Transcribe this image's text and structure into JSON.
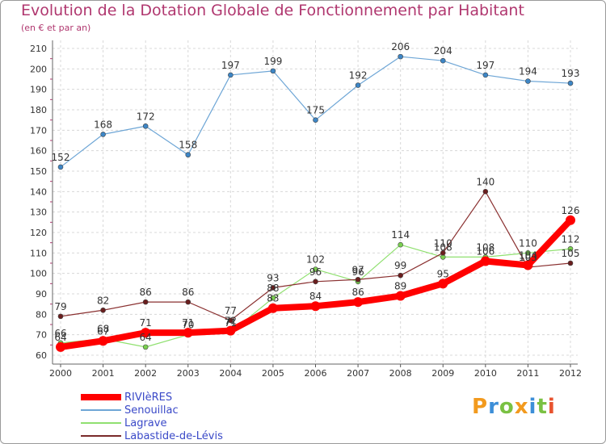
{
  "title": "Evolution de la Dotation Globale de Fonctionnement par Habitant",
  "subtitle": "(en € et par an)",
  "logo_text": "Proxiti",
  "chart_data": {
    "type": "line",
    "title": "Evolution de la Dotation Globale de Fonctionnement par Habitant",
    "ylabel": "(en € et par an)",
    "xlabel": "",
    "categories": [
      "2000",
      "2001",
      "2002",
      "2003",
      "2004",
      "2005",
      "2006",
      "2007",
      "2008",
      "2009",
      "2010",
      "2011",
      "2012"
    ],
    "ylim": [
      60,
      210
    ],
    "yticks": [
      60,
      70,
      80,
      90,
      100,
      110,
      120,
      130,
      140,
      150,
      160,
      170,
      180,
      190,
      200,
      210
    ],
    "grid": true,
    "legend_position": "bottom-left",
    "series": [
      {
        "name": "RIVIèRES",
        "color": "#ff0000",
        "values": [
          64,
          67,
          71,
          71,
          72,
          83,
          84,
          86,
          89,
          95,
          106,
          104,
          126
        ]
      },
      {
        "name": "Senouillac",
        "color": "#6ea6d6",
        "values": [
          152,
          168,
          172,
          158,
          197,
          199,
          175,
          192,
          206,
          204,
          197,
          194,
          193
        ]
      },
      {
        "name": "Lagrave",
        "color": "#90e070",
        "values": [
          66,
          68,
          64,
          70,
          71,
          88,
          102,
          96,
          114,
          108,
          108,
          110,
          112
        ]
      },
      {
        "name": "Labastide-de-Lévis",
        "color": "#7a2a2a",
        "values": [
          79,
          82,
          86,
          86,
          77,
          93,
          96,
          97,
          99,
          110,
          140,
          103,
          105
        ]
      }
    ]
  }
}
